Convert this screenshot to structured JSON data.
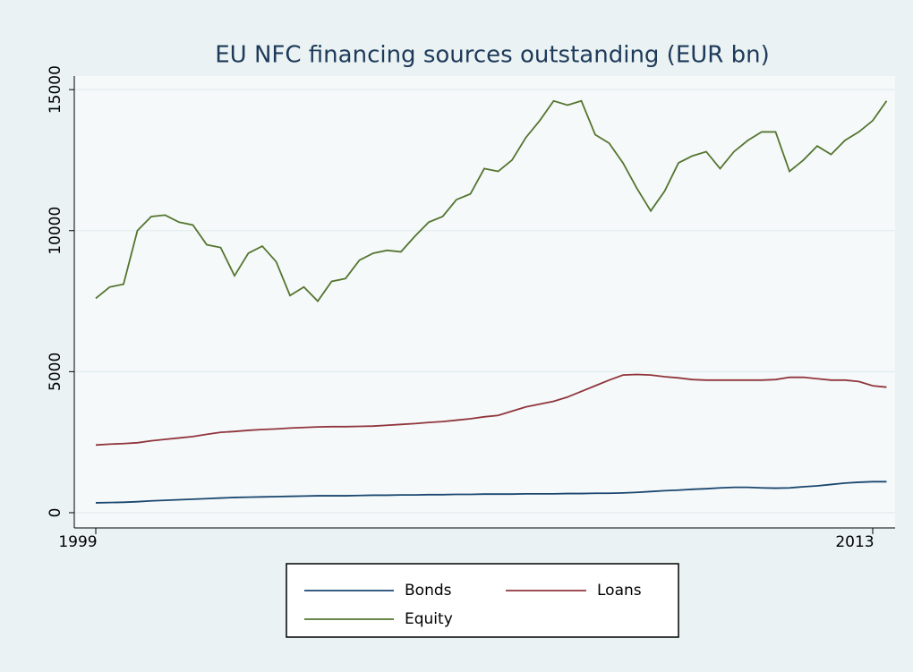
{
  "chart_data": {
    "type": "line",
    "title": "EU NFC financing sources outstanding (EUR bn)",
    "categories": [
      "1999",
      null,
      null,
      null,
      null,
      null,
      null,
      null,
      null,
      null,
      null,
      null,
      null,
      null,
      null,
      null,
      null,
      null,
      null,
      null,
      null,
      null,
      null,
      null,
      null,
      null,
      null,
      null,
      null,
      null,
      null,
      null,
      null,
      null,
      null,
      null,
      null,
      null,
      null,
      null,
      null,
      null,
      null,
      null,
      null,
      null,
      null,
      null,
      null,
      null,
      null,
      null,
      null,
      null,
      null,
      null,
      "2013",
      null
    ],
    "series": [
      {
        "name": "Bonds",
        "color": "#1a476f",
        "values": [
          350,
          360,
          370,
          390,
          420,
          440,
          460,
          480,
          500,
          520,
          540,
          550,
          560,
          570,
          580,
          590,
          600,
          600,
          600,
          610,
          620,
          620,
          630,
          630,
          640,
          640,
          650,
          650,
          660,
          660,
          660,
          670,
          670,
          670,
          680,
          680,
          690,
          690,
          700,
          720,
          750,
          780,
          800,
          830,
          850,
          880,
          900,
          900,
          880,
          870,
          880,
          920,
          950,
          1000,
          1050,
          1080,
          1100,
          1100
        ]
      },
      {
        "name": "Loans",
        "color": "#90353b",
        "values": [
          2400,
          2430,
          2450,
          2480,
          2550,
          2600,
          2650,
          2700,
          2780,
          2850,
          2880,
          2920,
          2950,
          2970,
          3000,
          3020,
          3040,
          3050,
          3050,
          3060,
          3070,
          3100,
          3130,
          3160,
          3200,
          3230,
          3280,
          3330,
          3400,
          3450,
          3600,
          3750,
          3850,
          3950,
          4100,
          4300,
          4500,
          4700,
          4880,
          4900,
          4880,
          4820,
          4780,
          4720,
          4700,
          4700,
          4700,
          4700,
          4700,
          4720,
          4800,
          4800,
          4750,
          4700,
          4700,
          4650,
          4500,
          4450
        ]
      },
      {
        "name": "Equity",
        "color": "#55752f",
        "values": [
          7600,
          8000,
          8100,
          10000,
          10500,
          10550,
          10300,
          10200,
          9500,
          9400,
          8400,
          9200,
          9450,
          8900,
          7700,
          8000,
          7500,
          8200,
          8300,
          8950,
          9200,
          9300,
          9250,
          9800,
          10300,
          10500,
          11100,
          11300,
          12200,
          12100,
          12500,
          13300,
          13900,
          14600,
          14450,
          14600,
          13400,
          13100,
          12400,
          11500,
          10700,
          11400,
          12400,
          12650,
          12800,
          12200,
          12800,
          13200,
          13500,
          13500,
          12100,
          12500,
          13000,
          12700,
          13200,
          13500,
          13900,
          14600
        ]
      }
    ],
    "ylim": [
      -540,
      15480
    ],
    "yticks": [
      0,
      5000,
      10000,
      15000
    ],
    "grid": true
  }
}
